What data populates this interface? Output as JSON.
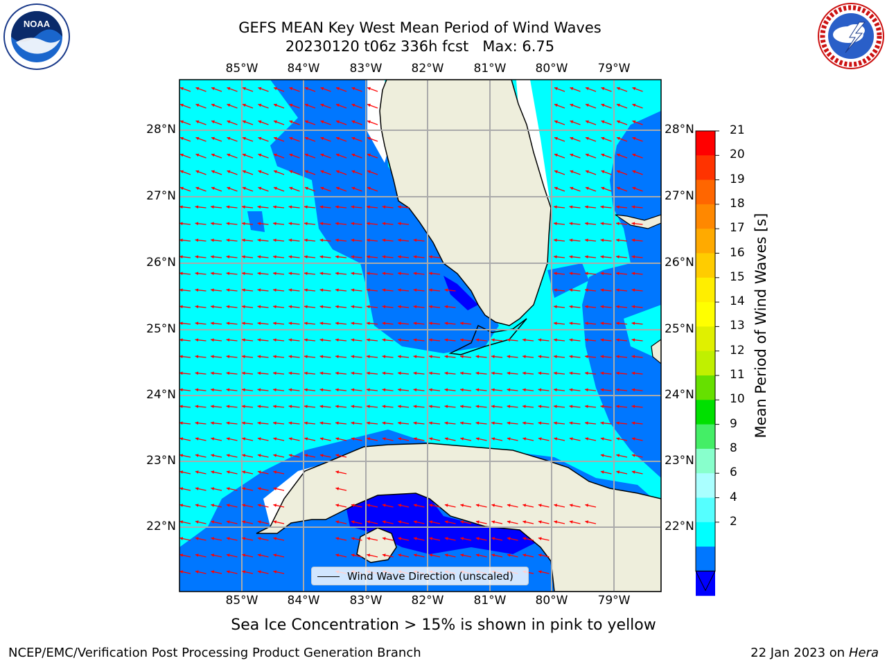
{
  "title_line1": "GEFS MEAN Key West Mean Period of Wind Waves",
  "title_line2": "20230120 t06z 336h fcst   Max: 6.75",
  "logos": {
    "left_icon": "noaa-logo-icon",
    "left_text": "NOAA",
    "right_icon": "nws-logo-icon",
    "right_text": "NATIONAL WEATHER SERVICE"
  },
  "lon_labels": [
    "85°W",
    "84°W",
    "83°W",
    "82°W",
    "81°W",
    "80°W",
    "79°W"
  ],
  "lat_labels": [
    "28°N",
    "27°N",
    "26°N",
    "25°N",
    "24°N",
    "23°N",
    "22°N"
  ],
  "legend_label": "Wind Wave Direction (unscaled)",
  "colorbar": {
    "label": "Mean Period of Wind Waves [s]",
    "ticks": [
      "21",
      "20",
      "19",
      "18",
      "17",
      "16",
      "15",
      "14",
      "13",
      "12",
      "11",
      "10",
      "9",
      "8",
      "6",
      "4",
      "2"
    ],
    "colors": [
      "#ff0000",
      "#ff3300",
      "#ff6600",
      "#ff8800",
      "#ffaa00",
      "#ffcc00",
      "#ffee00",
      "#ffff00",
      "#e0f000",
      "#c0f000",
      "#66e000",
      "#00e000",
      "#44ee66",
      "#88ffcc",
      "#aaffff",
      "#55ffff",
      "#00ffff",
      "#0077ff",
      "#0000ff"
    ]
  },
  "map": {
    "water_colors": {
      "period_4_6": "#00ffff",
      "period_2_4": "#0077ff",
      "period_below_2": "#0000ff",
      "land": "#eeeedc",
      "arrows": "#ff0000"
    }
  },
  "note": "Sea Ice Concentration > 15% is shown in pink to yellow",
  "footer_left": "NCEP/EMC/Verification Post Processing Product Generation Branch",
  "footer_date": "22 Jan 2023 on ",
  "footer_machine": "Hera"
}
